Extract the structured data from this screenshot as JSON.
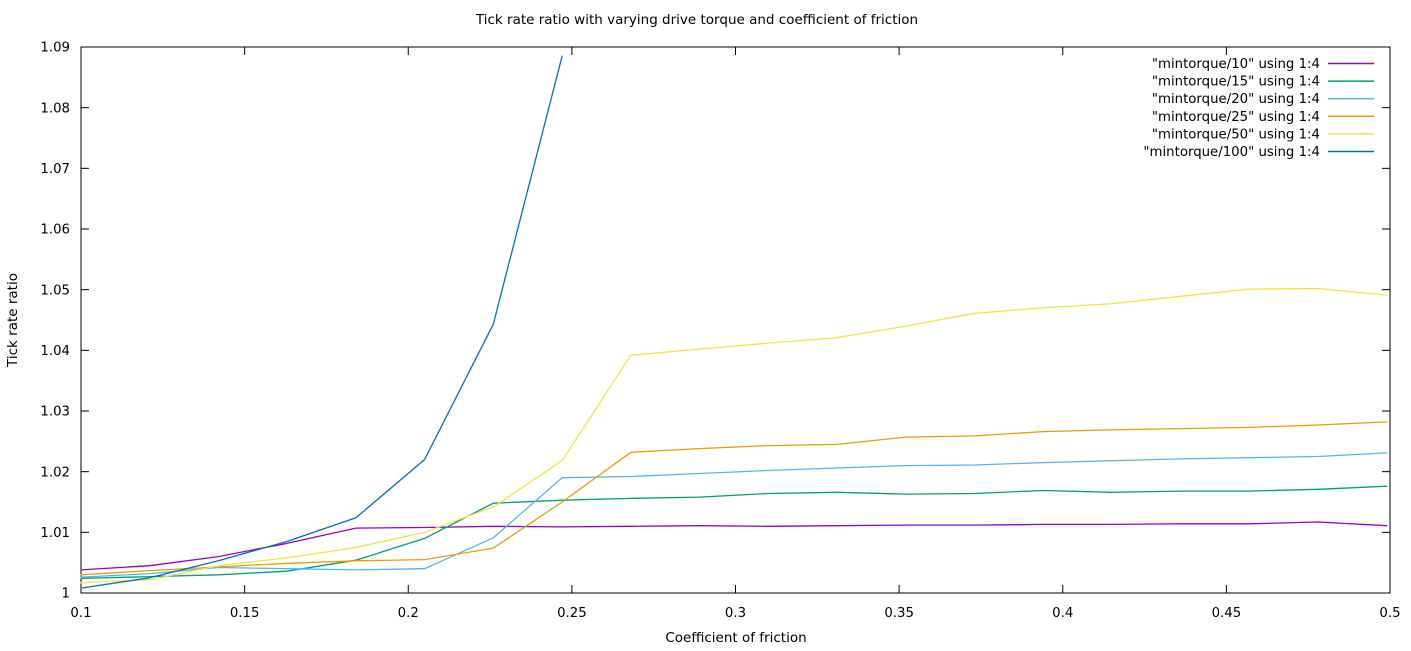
{
  "chart_data": {
    "type": "line",
    "title": "Tick rate ratio with varying drive torque and coefficient of friction",
    "xlabel": "Coefficient of friction",
    "ylabel": "Tick rate ratio",
    "xlim": [
      0.1,
      0.5
    ],
    "ylim": [
      1.0,
      1.09
    ],
    "grid": false,
    "legend_position": "top-right-inside",
    "xticks": [
      0.1,
      0.15,
      0.2,
      0.25,
      0.3,
      0.35,
      0.4,
      0.45,
      0.5
    ],
    "xtick_labels": [
      "0.1",
      "0.15",
      "0.2",
      "0.25",
      "0.3",
      "0.35",
      "0.4",
      "0.45",
      "0.5"
    ],
    "yticks": [
      1.0,
      1.01,
      1.02,
      1.03,
      1.04,
      1.05,
      1.06,
      1.07,
      1.08,
      1.09
    ],
    "ytick_labels": [
      "1",
      "1.01",
      "1.02",
      "1.03",
      "1.04",
      "1.05",
      "1.06",
      "1.07",
      "1.08",
      "1.09"
    ],
    "series": [
      {
        "name": "\"mintorque/10\" using 1:4",
        "color": "#9400d3",
        "x": [
          0.1,
          0.121,
          0.142,
          0.163,
          0.184,
          0.205,
          0.226,
          0.247,
          0.268,
          0.289,
          0.31,
          0.331,
          0.352,
          0.373,
          0.394,
          0.415,
          0.436,
          0.457,
          0.478,
          0.499
        ],
        "y": [
          1.0038,
          1.0045,
          1.006,
          1.0082,
          1.0107,
          1.0108,
          1.011,
          1.0109,
          1.011,
          1.0111,
          1.011,
          1.0111,
          1.0112,
          1.0112,
          1.0113,
          1.0113,
          1.0114,
          1.0114,
          1.0117,
          1.0111
        ]
      },
      {
        "name": "\"mintorque/15\" using 1:4",
        "color": "#009e73",
        "x": [
          0.1,
          0.121,
          0.142,
          0.163,
          0.184,
          0.205,
          0.226,
          0.247,
          0.268,
          0.289,
          0.31,
          0.331,
          0.352,
          0.373,
          0.394,
          0.415,
          0.436,
          0.457,
          0.478,
          0.499
        ],
        "y": [
          1.0024,
          1.0027,
          1.003,
          1.0036,
          1.0054,
          1.009,
          1.0148,
          1.0153,
          1.0156,
          1.0158,
          1.0164,
          1.0166,
          1.0163,
          1.0164,
          1.0169,
          1.0166,
          1.0168,
          1.0168,
          1.0171,
          1.0176
        ]
      },
      {
        "name": "\"mintorque/20\" using 1:4",
        "color": "#56b4e9",
        "x": [
          0.1,
          0.121,
          0.142,
          0.163,
          0.184,
          0.205,
          0.226,
          0.247,
          0.268,
          0.289,
          0.31,
          0.331,
          0.352,
          0.373,
          0.394,
          0.415,
          0.436,
          0.457,
          0.478,
          0.499
        ],
        "y": [
          1.0026,
          1.0032,
          1.0042,
          1.004,
          1.0038,
          1.004,
          1.0091,
          1.019,
          1.0192,
          1.0197,
          1.0202,
          1.0206,
          1.021,
          1.0211,
          1.0215,
          1.0218,
          1.0221,
          1.0223,
          1.0225,
          1.0231
        ]
      },
      {
        "name": "\"mintorque/25\" using 1:4",
        "color": "#e69f00",
        "x": [
          0.1,
          0.121,
          0.142,
          0.163,
          0.184,
          0.205,
          0.226,
          0.247,
          0.268,
          0.289,
          0.31,
          0.331,
          0.352,
          0.373,
          0.394,
          0.415,
          0.436,
          0.457,
          0.478,
          0.499
        ],
        "y": [
          1.003,
          1.0037,
          1.0043,
          1.0049,
          1.0053,
          1.0055,
          1.0074,
          1.015,
          1.0232,
          1.0238,
          1.0243,
          1.0245,
          1.0257,
          1.0259,
          1.0266,
          1.0269,
          1.0271,
          1.0273,
          1.0277,
          1.0282
        ]
      },
      {
        "name": "\"mintorque/50\" using 1:4",
        "color": "#f0e442",
        "x": [
          0.1,
          0.121,
          0.142,
          0.163,
          0.184,
          0.205,
          0.226,
          0.247,
          0.268,
          0.289,
          0.31,
          0.331,
          0.352,
          0.373,
          0.394,
          0.415,
          0.436,
          0.457,
          0.478,
          0.499
        ],
        "y": [
          1.0017,
          1.0022,
          1.0045,
          1.0058,
          1.0075,
          1.01,
          1.0142,
          1.0218,
          1.0392,
          1.0402,
          1.0412,
          1.0421,
          1.044,
          1.0461,
          1.047,
          1.0477,
          1.0489,
          1.0501,
          1.0502,
          1.0491
        ]
      },
      {
        "name": "\"mintorque/100\" using 1:4",
        "color": "#0072b2",
        "x": [
          0.1,
          0.121,
          0.142,
          0.163,
          0.184,
          0.205,
          0.226,
          0.247
        ],
        "y": [
          1.0008,
          1.0025,
          1.0053,
          1.0085,
          1.0124,
          1.022,
          1.0443,
          1.0885
        ]
      }
    ],
    "axis_color": "#000000",
    "background_color": "#ffffff"
  }
}
